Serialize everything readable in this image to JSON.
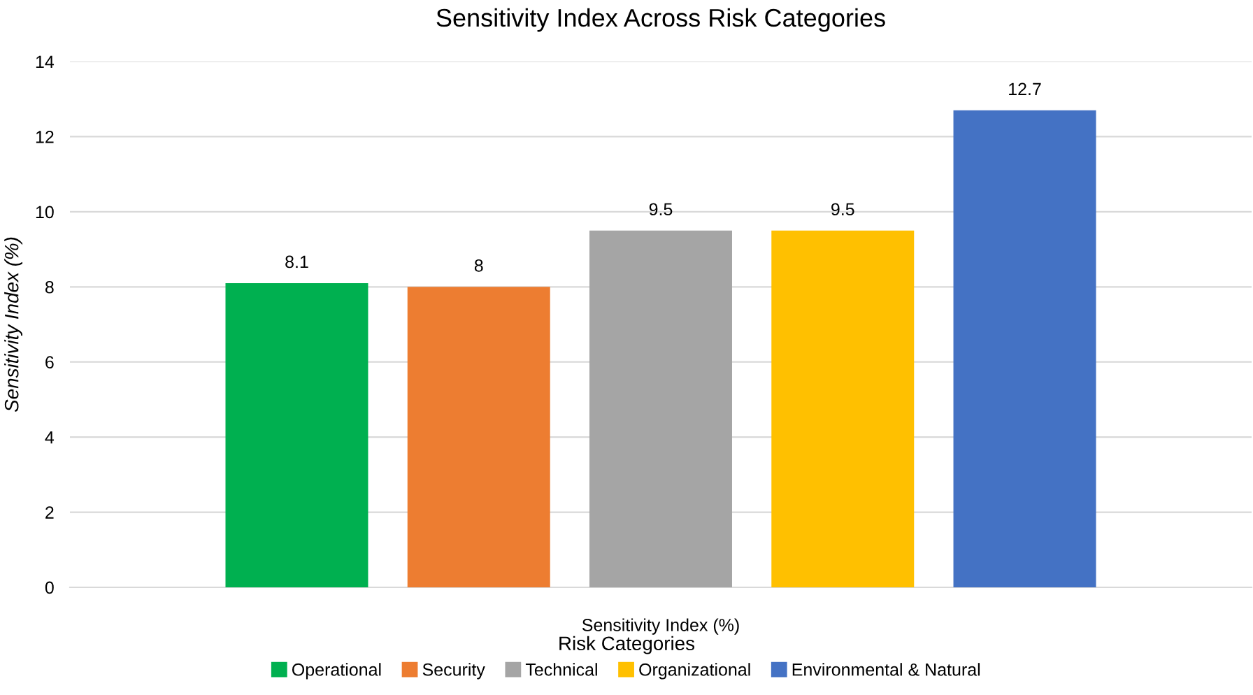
{
  "chart_data": {
    "type": "bar",
    "title": "Sensitivity Index Across Risk Categories",
    "xlabel": "Sensitivity Index (%)",
    "ylabel": "Sensitivity Index (%)",
    "legend_title": "Risk Categories",
    "categories": [
      null
    ],
    "series": [
      {
        "name": "Operational",
        "color": "#00b050",
        "values": [
          8.1
        ]
      },
      {
        "name": "Security",
        "color": "#ed7d31",
        "values": [
          8
        ]
      },
      {
        "name": "Technical",
        "color": "#a5a5a5",
        "values": [
          9.5
        ]
      },
      {
        "name": "Organizational",
        "color": "#ffc000",
        "values": [
          9.5
        ]
      },
      {
        "name": "Environmental & Natural",
        "color": "#4472c4",
        "values": [
          12.7
        ]
      }
    ],
    "ylim": [
      0,
      14
    ],
    "yticks": [
      0,
      2,
      4,
      6,
      8,
      10,
      12,
      14
    ],
    "grid": "y",
    "legend": "bottom",
    "data_labels": true
  }
}
